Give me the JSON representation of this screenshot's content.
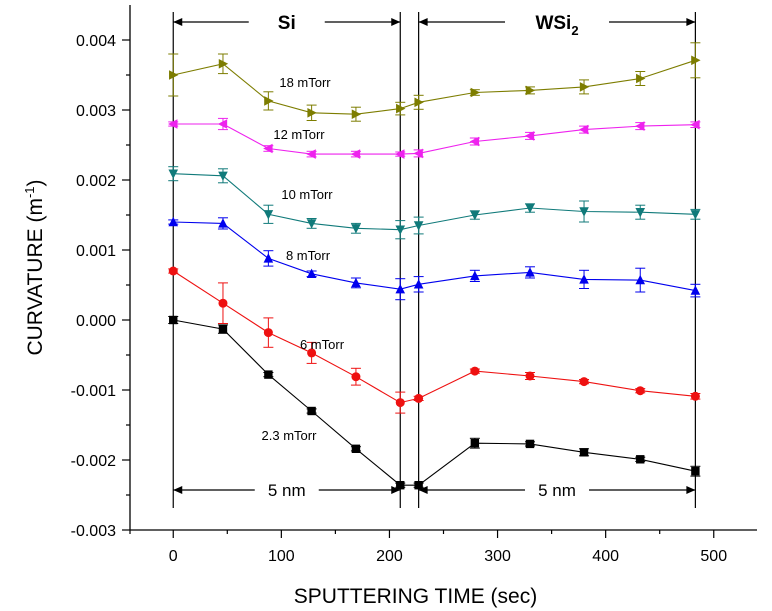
{
  "chart_data": {
    "type": "line",
    "xlabel": "SPUTTERING TIME (sec)",
    "ylabel_main": "CURVATURE (m",
    "ylabel_sup": "-1",
    "ylabel_close": ")",
    "xlim": [
      -40,
      540
    ],
    "ylim": [
      -0.003,
      0.0045
    ],
    "x_ticks": [
      0,
      100,
      200,
      300,
      400,
      500
    ],
    "x_tick_labels": [
      "0",
      "100",
      "200",
      "300",
      "400",
      "500"
    ],
    "y_ticks": [
      -0.003,
      -0.002,
      -0.001,
      0.0,
      0.001,
      0.002,
      0.003,
      0.004
    ],
    "y_tick_labels": [
      "-0.003",
      "-0.002",
      "-0.001",
      "0.000",
      "0.001",
      "0.002",
      "0.003",
      "0.004"
    ],
    "regions": [
      {
        "label": "Si",
        "x_start": 0,
        "x_end": 210
      },
      {
        "label_main": "WSi",
        "label_sub": "2",
        "x_start": 227,
        "x_end": 483
      }
    ],
    "thickness_labels": [
      {
        "label": "5 nm",
        "x_start": 0,
        "x_end": 210
      },
      {
        "label": "5 nm",
        "x_start": 227,
        "x_end": 483
      }
    ],
    "series": [
      {
        "name": "2.3 mTorr",
        "color": "#000000",
        "marker": "square",
        "x": [
          0,
          46,
          88,
          128,
          169,
          210,
          227,
          279,
          330,
          380,
          432,
          483
        ],
        "y": [
          0.0,
          -0.00013,
          -0.00078,
          -0.0013,
          -0.00184,
          -0.00236,
          -0.00236,
          -0.00176,
          -0.00177,
          -0.00189,
          -0.00199,
          -0.00216
        ],
        "err": [
          5e-05,
          6e-05,
          3e-05,
          3e-05,
          3e-05,
          3e-05,
          3e-05,
          7e-05,
          3e-05,
          5e-05,
          3e-05,
          7e-05
        ]
      },
      {
        "name": "6 mTorr",
        "color": "#ee1111",
        "marker": "circle",
        "x": [
          0,
          46,
          88,
          128,
          169,
          210,
          227,
          279,
          330,
          380,
          432,
          483
        ],
        "y": [
          0.0007,
          0.00024,
          -0.00018,
          -0.00047,
          -0.00081,
          -0.00118,
          -0.00112,
          -0.00073,
          -0.0008,
          -0.00088,
          -0.00101,
          -0.00109
        ],
        "err": [
          3e-05,
          0.00029,
          0.00021,
          0.00015,
          0.00012,
          0.00015,
          3e-05,
          3e-05,
          5e-05,
          3e-05,
          3e-05,
          4e-05
        ]
      },
      {
        "name": "8 mTorr",
        "color": "#0000ee",
        "marker": "triangle-up",
        "x": [
          0,
          46,
          88,
          128,
          169,
          210,
          227,
          279,
          330,
          380,
          432,
          483
        ],
        "y": [
          0.0014,
          0.00138,
          0.00088,
          0.00066,
          0.00053,
          0.00044,
          0.00051,
          0.00063,
          0.00068,
          0.00058,
          0.00057,
          0.00042
        ],
        "err": [
          3e-05,
          8e-05,
          0.00011,
          4e-05,
          7e-05,
          0.00015,
          0.00011,
          8e-05,
          8e-05,
          0.00013,
          0.00017,
          9e-05
        ]
      },
      {
        "name": "10 mTorr",
        "color": "#107a7a",
        "marker": "triangle-down",
        "x": [
          0,
          46,
          88,
          128,
          169,
          210,
          227,
          279,
          330,
          380,
          432,
          483
        ],
        "y": [
          0.00209,
          0.00206,
          0.00151,
          0.00138,
          0.00131,
          0.00129,
          0.00135,
          0.0015,
          0.0016,
          0.00155,
          0.00154,
          0.00151
        ],
        "err": [
          0.0001,
          0.0001,
          0.00013,
          7e-05,
          7e-05,
          0.00013,
          0.00012,
          6e-05,
          6e-05,
          0.00015,
          0.0001,
          7e-05
        ]
      },
      {
        "name": "12 mTorr",
        "color": "#ee22ee",
        "marker": "triangle-left",
        "x": [
          0,
          46,
          88,
          128,
          169,
          210,
          227,
          279,
          330,
          380,
          432,
          483
        ],
        "y": [
          0.0028,
          0.0028,
          0.00245,
          0.00237,
          0.00237,
          0.00237,
          0.00238,
          0.00255,
          0.00263,
          0.00272,
          0.00277,
          0.00279
        ],
        "err": [
          3e-05,
          8e-05,
          4e-05,
          4e-05,
          4e-05,
          3e-05,
          5e-05,
          5e-05,
          5e-05,
          5e-05,
          5e-05,
          4e-05
        ]
      },
      {
        "name": "18 mTorr",
        "color": "#7d7d00",
        "marker": "triangle-right",
        "x": [
          0,
          46,
          88,
          128,
          169,
          210,
          227,
          279,
          330,
          380,
          432,
          483
        ],
        "y": [
          0.0035,
          0.00366,
          0.00313,
          0.00296,
          0.00294,
          0.00302,
          0.00311,
          0.00325,
          0.00328,
          0.00333,
          0.00345,
          0.00371
        ],
        "err": [
          0.0003,
          0.00014,
          0.00013,
          0.00011,
          0.0001,
          9e-05,
          0.0001,
          4e-05,
          5e-05,
          0.0001,
          0.0001,
          0.00025
        ]
      }
    ]
  }
}
